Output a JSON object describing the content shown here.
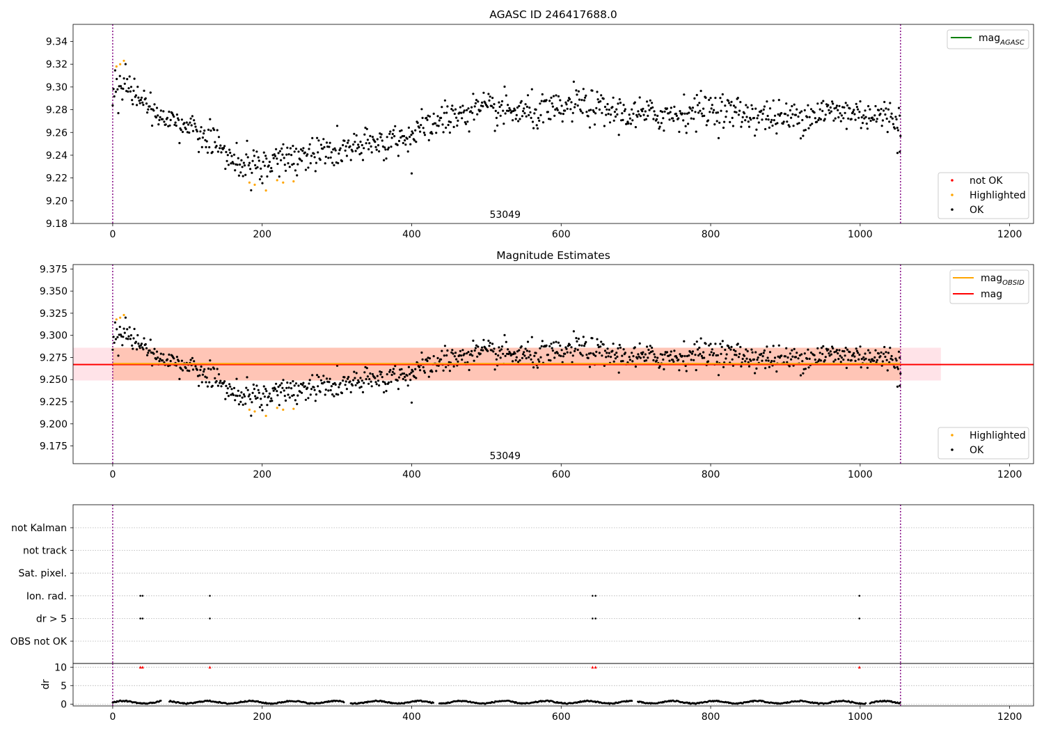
{
  "chart_data": [
    {
      "type": "scatter",
      "title": "AGASC ID 246417688.0",
      "xlim": [
        -53,
        1232
      ],
      "ylim": [
        9.18,
        9.355
      ],
      "xticks": [
        0,
        200,
        400,
        600,
        800,
        1000,
        1200
      ],
      "yticks": [
        9.18,
        9.2,
        9.22,
        9.24,
        9.26,
        9.28,
        9.3,
        9.32,
        9.34
      ],
      "ytick_labels": [
        "9.18",
        "9.20",
        "9.22",
        "9.24",
        "9.26",
        "9.28",
        "9.30",
        "9.32",
        "9.34"
      ],
      "vlines": [
        0,
        1054
      ],
      "annotation": {
        "x": 525,
        "y": 9.185,
        "text": "53049"
      },
      "legend_top": {
        "position": "upper right",
        "entries": [
          {
            "label": "mag",
            "sub": "AGASC",
            "color": "#008000"
          }
        ]
      },
      "legend_bottom": {
        "position": "lower right",
        "entries": [
          {
            "label": "not OK",
            "color": "#ff0000"
          },
          {
            "label": "Highlighted",
            "color": "#ffa500"
          },
          {
            "label": "OK",
            "color": "#000000"
          }
        ]
      },
      "trend_ok": [
        [
          0,
          9.298
        ],
        [
          15,
          9.305
        ],
        [
          30,
          9.293
        ],
        [
          60,
          9.276
        ],
        [
          90,
          9.268
        ],
        [
          120,
          9.258
        ],
        [
          150,
          9.243
        ],
        [
          170,
          9.231
        ],
        [
          190,
          9.23
        ],
        [
          220,
          9.234
        ],
        [
          260,
          9.241
        ],
        [
          300,
          9.243
        ],
        [
          350,
          9.249
        ],
        [
          400,
          9.258
        ],
        [
          440,
          9.271
        ],
        [
          480,
          9.279
        ],
        [
          520,
          9.279
        ],
        [
          560,
          9.277
        ],
        [
          600,
          9.279
        ],
        [
          620,
          9.286
        ],
        [
          650,
          9.28
        ],
        [
          700,
          9.275
        ],
        [
          750,
          9.276
        ],
        [
          800,
          9.281
        ],
        [
          850,
          9.276
        ],
        [
          900,
          9.272
        ],
        [
          950,
          9.278
        ],
        [
          1000,
          9.277
        ],
        [
          1054,
          9.272
        ]
      ],
      "scatter_sigma": 0.0075,
      "ok_x_range": [
        0,
        1054
      ],
      "ok_count": 980,
      "highlighted": [
        [
          5,
          9.318
        ],
        [
          10,
          9.32
        ],
        [
          15,
          9.323
        ],
        [
          183,
          9.216
        ],
        [
          190,
          9.214
        ],
        [
          205,
          9.209
        ],
        [
          220,
          9.218
        ],
        [
          228,
          9.216
        ],
        [
          242,
          9.217
        ]
      ],
      "low_points": [
        [
          400,
          9.224
        ],
        [
          1050,
          9.242
        ],
        [
          1053,
          9.243
        ]
      ]
    },
    {
      "type": "scatter",
      "title": "Magnitude Estimates",
      "xlim": [
        -53,
        1232
      ],
      "ylim": [
        9.155,
        9.38
      ],
      "xticks": [
        0,
        200,
        400,
        600,
        800,
        1000,
        1200
      ],
      "yticks": [
        9.175,
        9.2,
        9.225,
        9.25,
        9.275,
        9.3,
        9.325,
        9.35,
        9.375
      ],
      "ytick_labels": [
        "9.175",
        "9.200",
        "9.225",
        "9.250",
        "9.275",
        "9.300",
        "9.325",
        "9.350",
        "9.375"
      ],
      "vlines": [
        0,
        1054
      ],
      "annotation": {
        "x": 525,
        "y": 9.16,
        "text": "53049"
      },
      "mag_line": {
        "x": [
          -53,
          1232
        ],
        "y": 9.267,
        "color": "#ff0000"
      },
      "mag_band": {
        "x": [
          -53,
          1108
        ],
        "y": [
          9.249,
          9.286
        ],
        "color": "#ffc0cb"
      },
      "obsid_line": {
        "x": [
          0,
          1054
        ],
        "y": 9.268,
        "color": "#ffa500"
      },
      "obsid_band": {
        "x": [
          0,
          1054
        ],
        "y": [
          9.249,
          9.286
        ],
        "color": "#ffa07a"
      },
      "legend_top": {
        "position": "upper right",
        "entries": [
          {
            "label": "mag",
            "sub": "OBSID",
            "color": "#ffa500"
          },
          {
            "label": "mag",
            "sub": "",
            "color": "#ff0000"
          }
        ]
      },
      "legend_bottom": {
        "position": "lower right",
        "entries": [
          {
            "label": "Highlighted",
            "color": "#ffa500"
          },
          {
            "label": "OK",
            "color": "#000000"
          }
        ]
      }
    },
    {
      "type": "scatter",
      "flag_rows": [
        "OBS not OK",
        "dr > 5",
        "Ion. rad.",
        "Sat. pixel.",
        "not track",
        "not Kalman"
      ],
      "flag_points": {
        "dr > 5": [
          37,
          40,
          130,
          642,
          646,
          999
        ],
        "Ion. rad.": [
          37,
          40,
          130,
          642,
          646,
          999
        ]
      },
      "dr_panel": {
        "ylabel": "dr",
        "ylim": [
          -0.5,
          11
        ],
        "yticks": [
          0,
          5,
          10
        ],
        "ytick_labels": [
          "0",
          "5",
          "10"
        ],
        "clipped_x": [
          37,
          40,
          130,
          642,
          646,
          999
        ],
        "gaps": [
          [
            65,
            75
          ],
          [
            310,
            318
          ],
          [
            430,
            436
          ],
          [
            695,
            702
          ],
          [
            1008,
            1012
          ]
        ],
        "baseline": 0.5
      },
      "xlim": [
        -53,
        1232
      ],
      "xticks": [
        0,
        200,
        400,
        600,
        800,
        1000,
        1200
      ],
      "vlines": [
        0,
        1054
      ]
    }
  ]
}
